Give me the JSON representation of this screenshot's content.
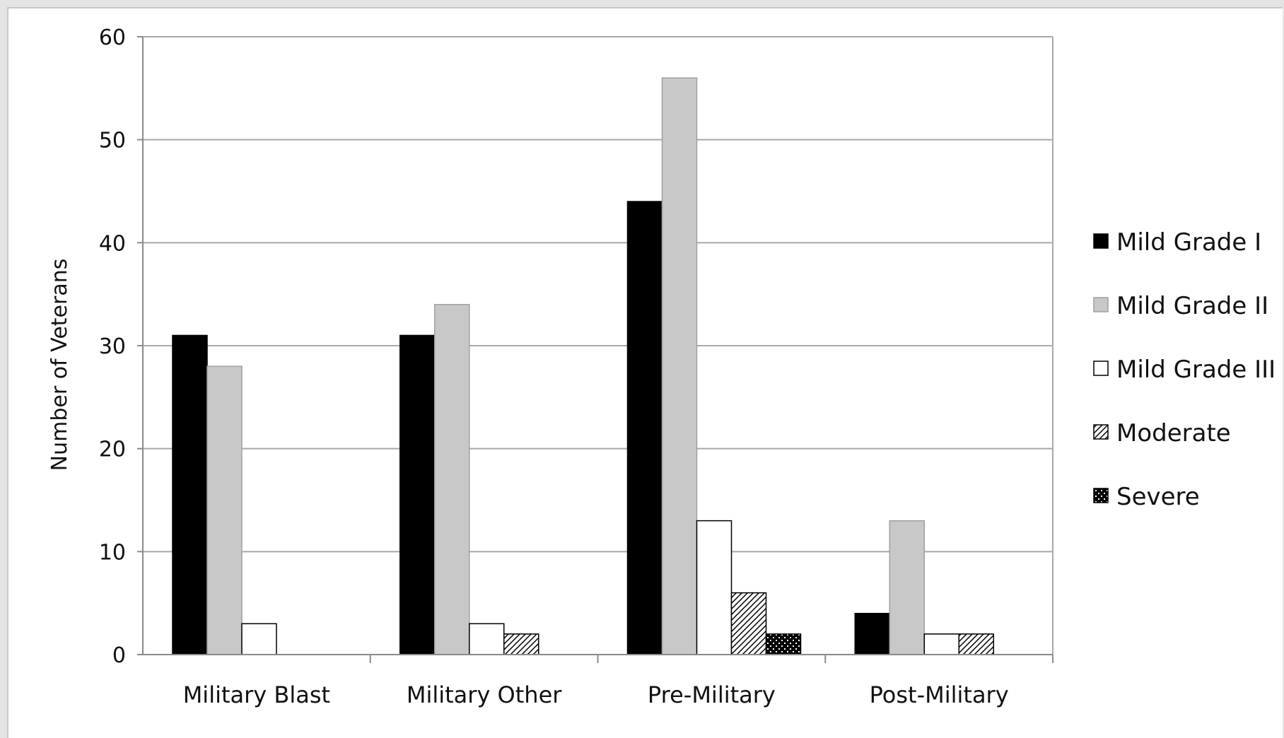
{
  "chart_data": {
    "type": "bar",
    "ylabel": "Number of Veterans",
    "xlabel": "",
    "title": "",
    "ylim": [
      0,
      60
    ],
    "yticks": [
      0,
      10,
      20,
      30,
      40,
      50,
      60
    ],
    "grid": true,
    "legend_position": "right",
    "categories": [
      "Military Blast",
      "Military Other",
      "Pre-Military",
      "Post-Military"
    ],
    "series": [
      {
        "name": "Mild Grade I",
        "values": [
          31,
          31,
          44,
          4
        ],
        "fill": "#000000"
      },
      {
        "name": "Mild Grade II",
        "values": [
          28,
          34,
          56,
          13
        ],
        "fill": "#c8c8c8"
      },
      {
        "name": "Mild Grade III",
        "values": [
          3,
          3,
          13,
          2
        ],
        "fill": "#ffffff"
      },
      {
        "name": "Moderate",
        "values": [
          0,
          2,
          6,
          2
        ],
        "fill": "hatch"
      },
      {
        "name": "Severe",
        "values": [
          0,
          0,
          2,
          0
        ],
        "fill": "dots"
      }
    ]
  }
}
